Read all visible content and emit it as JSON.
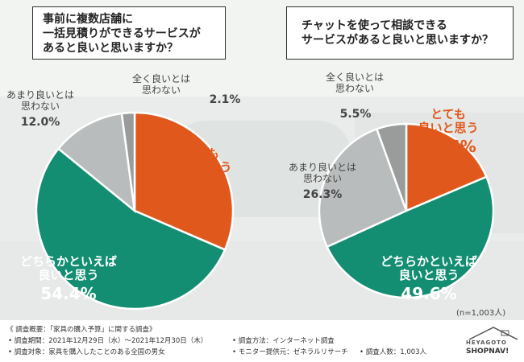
{
  "questions": {
    "left": [
      "事前に複数店舗に",
      "一括見積りができるサービスが",
      "あると良いと思いますか？"
    ],
    "right": [
      "チャットを使って相談できる",
      "サービスがあると良いと思いますか？"
    ]
  },
  "colors": {
    "very_good": "#e1581c",
    "somewhat_good": "#138e72",
    "not_very_good": "#b9bcbc",
    "not_at_all": "#9a9c9c",
    "box_border": "#2f2f2f"
  },
  "chart_data": [
    {
      "type": "pie",
      "title": "事前に複数店舗に一括見積りができるサービスがあると良いと思いますか？",
      "slices": [
        {
          "label": [
            "とても",
            "良いと思う"
          ],
          "value": 31.5,
          "display": "31.5%",
          "color": "#e1581c"
        },
        {
          "label": [
            "どちらかといえば",
            "良いと思う"
          ],
          "value": 54.4,
          "display": "54.4%",
          "color": "#138e72"
        },
        {
          "label": [
            "あまり良いとは",
            "思わない"
          ],
          "value": 12.0,
          "display": "12.0%",
          "color": "#b9bcbc"
        },
        {
          "label": [
            "全く良いとは",
            "思わない"
          ],
          "value": 2.1,
          "display": "2.1%",
          "color": "#9a9c9c"
        }
      ]
    },
    {
      "type": "pie",
      "title": "チャットを使って相談できるサービスがあると良いと思いますか？",
      "slices": [
        {
          "label": [
            "とても",
            "良いと思う"
          ],
          "value": 18.6,
          "display": "18.6%",
          "color": "#e1581c"
        },
        {
          "label": [
            "どちらかといえば",
            "良いと思う"
          ],
          "value": 49.6,
          "display": "49.6%",
          "color": "#138e72"
        },
        {
          "label": [
            "あまり良いとは",
            "思わない"
          ],
          "value": 26.3,
          "display": "26.3%",
          "color": "#b9bcbc"
        },
        {
          "label": [
            "全く良いとは",
            "思わない"
          ],
          "value": 5.5,
          "display": "5.5%",
          "color": "#9a9c9c"
        }
      ]
    }
  ],
  "sample_note": "(n=1,003人)",
  "footer": {
    "heading": "《 調査概要：「家具の購入予算」に関する調査》",
    "period": "• 調査期間：2021年12月29日（水）～2021年12月30日（木）",
    "target": "• 調査対象：家具を購入したことのある全国の男女",
    "method": "• 調査方法：インターネット調査",
    "provider": "• モニター提供元：ゼネラルリサーチ",
    "count": "• 調査人数：1,003人"
  },
  "logo": {
    "top": "HEYAGOTO",
    "bottom": "SHOPNAV!"
  }
}
